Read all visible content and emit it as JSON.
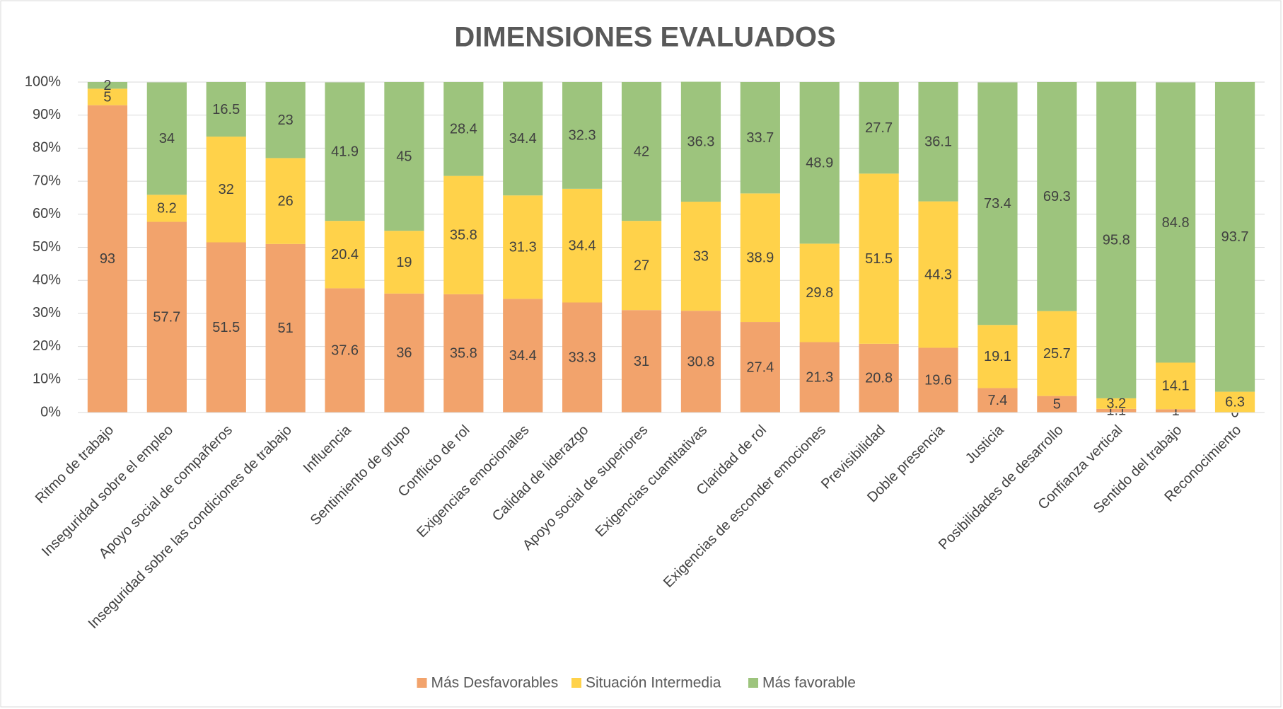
{
  "chart_data": {
    "type": "stacked-bar",
    "title": "DIMENSIONES EVALUADOS",
    "categories": [
      "Ritmo de trabajo",
      "Inseguridad sobre el empleo",
      "Apoyo social de compañeros",
      "Inseguridad sobre las condiciones de trabajo",
      "Influencia",
      "Sentimiento de grupo",
      "Conflicto de rol",
      "Exigencias emocionales",
      "Calidad de liderazgo",
      "Apoyo social de superiores",
      "Exigencias cuantitativas",
      "Claridad de rol",
      "Exigencias de esconder emociones",
      "Previsibilidad",
      "Doble presencia",
      "Justicia",
      "Posibilidades de desarrollo",
      "Confianza vertical",
      "Sentido del trabajo",
      "Reconocimiento"
    ],
    "series": [
      {
        "name": "Más Desfavorables",
        "color": "#f2a36c",
        "values": [
          93,
          57.7,
          51.5,
          51,
          37.6,
          36,
          35.8,
          34.4,
          33.3,
          31,
          30.8,
          27.4,
          21.3,
          20.8,
          19.6,
          7.4,
          5,
          1.1,
          1,
          0
        ]
      },
      {
        "name": "Situación Intermedia",
        "color": "#ffd24a",
        "values": [
          5,
          8.2,
          32,
          26,
          20.4,
          19,
          35.8,
          31.3,
          34.4,
          27,
          33,
          38.9,
          29.8,
          51.5,
          44.3,
          19.1,
          25.7,
          3.2,
          14.1,
          6.3
        ]
      },
      {
        "name": "Más favorable",
        "color": "#9dc47d",
        "values": [
          2,
          34,
          16.5,
          23,
          41.9,
          45,
          28.4,
          34.4,
          32.3,
          42,
          36.3,
          33.7,
          48.9,
          27.7,
          36.1,
          73.4,
          69.3,
          95.8,
          84.8,
          93.7
        ]
      }
    ],
    "ylim": [
      0,
      100
    ],
    "yticks": [
      {
        "value": 0,
        "label": "0%"
      },
      {
        "value": 10,
        "label": "10%"
      },
      {
        "value": 20,
        "label": "20%"
      },
      {
        "value": 30,
        "label": "30%"
      },
      {
        "value": 40,
        "label": "40%"
      },
      {
        "value": 50,
        "label": "50%"
      },
      {
        "value": 60,
        "label": "60%"
      },
      {
        "value": 70,
        "label": "70%"
      },
      {
        "value": 80,
        "label": "80%"
      },
      {
        "value": 90,
        "label": "90%"
      },
      {
        "value": 100,
        "label": "100%"
      }
    ],
    "grid": true,
    "legend": "bottom"
  }
}
